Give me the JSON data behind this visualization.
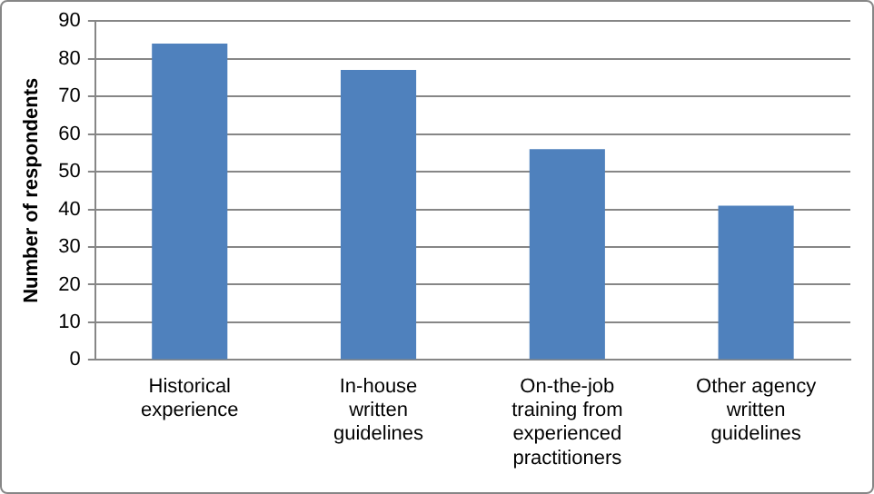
{
  "chart_data": {
    "type": "bar",
    "ylabel": "Number of respondents",
    "categories": [
      "Historical experience",
      "In-house written guidelines",
      "On-the-job training from experienced practitioners",
      "Other agency written guidelines"
    ],
    "values": [
      84,
      77,
      56,
      41
    ],
    "color": "#4f81bd",
    "ylim": [
      0,
      90
    ],
    "yticks": [
      0,
      10,
      20,
      30,
      40,
      50,
      60,
      70,
      80,
      90
    ],
    "grid": "y",
    "legend": false
  }
}
